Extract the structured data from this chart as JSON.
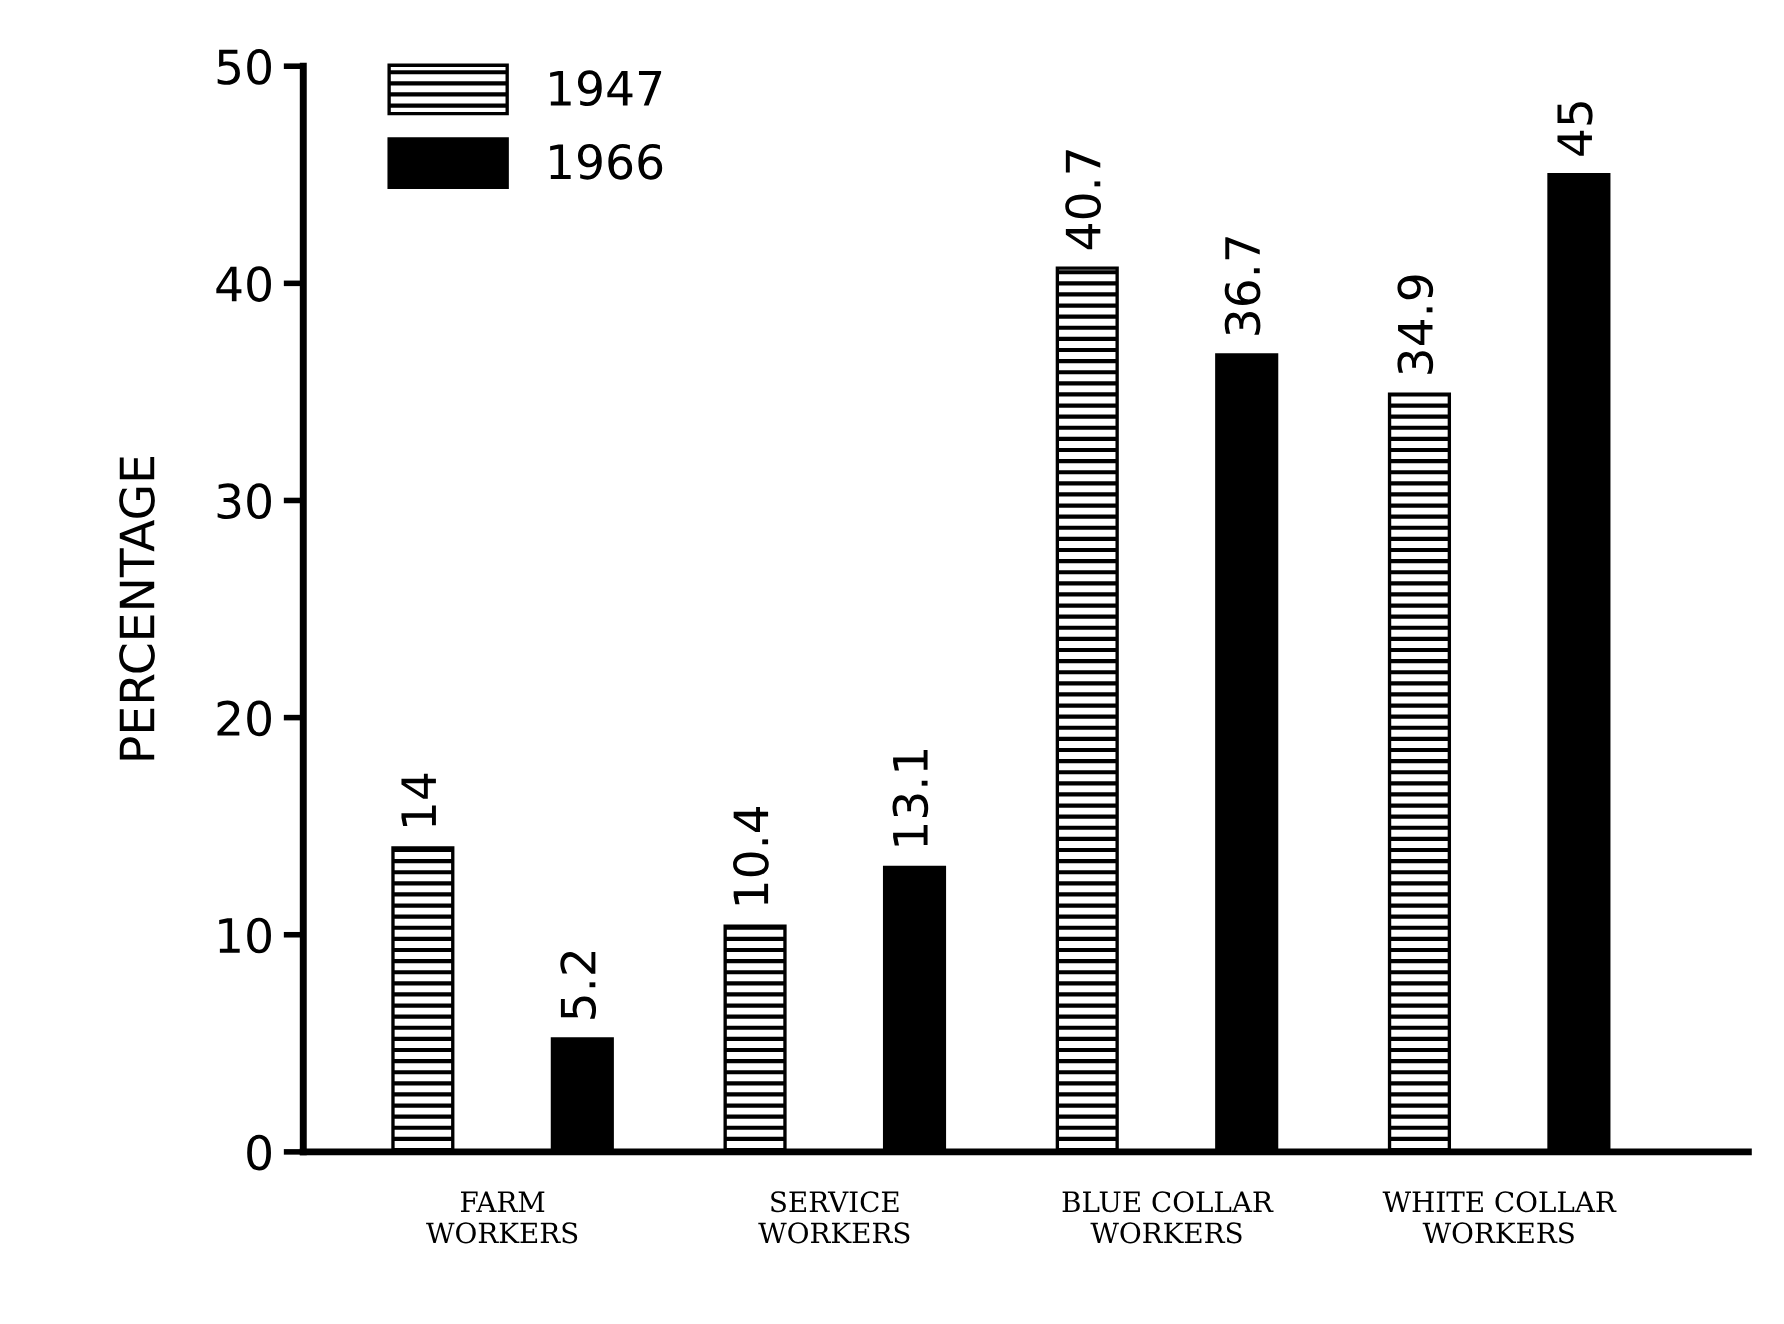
{
  "chart_data": {
    "type": "bar",
    "ylabel": "PERCENTAGE",
    "categories": [
      "FARM\nWORKERS",
      "SERVICE\nWORKERS",
      "BLUE COLLAR\nWORKERS",
      "WHITE COLLAR\nWORKERS"
    ],
    "series": [
      {
        "name": "1947",
        "color": "#000000",
        "values": [
          14,
          10.4,
          40.7,
          34.9
        ]
      },
      {
        "name": "1966",
        "color": "#000000",
        "values": [
          5.2,
          13.1,
          36.7,
          45
        ]
      }
    ],
    "ylim": [
      0,
      50
    ],
    "yticks": [
      0,
      10,
      20,
      30,
      40,
      50
    ],
    "data_labels": true,
    "legend": "top left",
    "grid": false
  }
}
